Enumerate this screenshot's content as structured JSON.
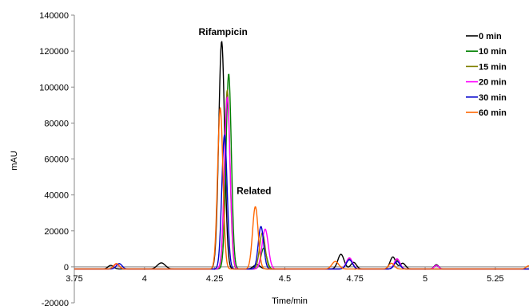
{
  "chart_data": {
    "type": "line",
    "title": "",
    "xlabel": "Time/min",
    "ylabel": "mAU",
    "xlim": [
      3.75,
      5.37
    ],
    "ylim": [
      -20000,
      140000
    ],
    "x_ticks": [
      3.75,
      4,
      4.25,
      4.5,
      4.75,
      5,
      5.25
    ],
    "x_tick_labels": [
      "3.75",
      "4",
      "4.25",
      "4.5",
      "4.75",
      "5",
      "5.25"
    ],
    "y_ticks": [
      -20000,
      0,
      20000,
      40000,
      60000,
      80000,
      100000,
      120000,
      140000
    ],
    "y_tick_labels": [
      "-20000",
      "0",
      "20000",
      "40000",
      "60000",
      "80000",
      "100000",
      "120000",
      "140000"
    ],
    "grid": false,
    "legend_position": "top-right",
    "annotations": [
      {
        "text": "Rifampicin",
        "x": 4.28,
        "y": 129000
      },
      {
        "text": "Related",
        "x": 4.39,
        "y": 40500
      }
    ],
    "series": [
      {
        "name": "0 min",
        "color": "#000000",
        "baseline": -1200,
        "peaks": [
          [
            3.88,
            800,
            0.01
          ],
          [
            4.06,
            2200,
            0.014
          ],
          [
            4.275,
            125500,
            0.0105
          ],
          [
            4.4,
            1200,
            0.012
          ],
          [
            4.7,
            7000,
            0.011
          ],
          [
            4.745,
            2500,
            0.01
          ],
          [
            4.885,
            5500,
            0.01
          ],
          [
            4.92,
            2000,
            0.01
          ],
          [
            5.04,
            1200,
            0.008
          ]
        ]
      },
      {
        "name": "10 min",
        "color": "#008000",
        "baseline": -1200,
        "peaks": [
          [
            3.9,
            1500,
            0.01
          ],
          [
            4.3,
            107500,
            0.0095
          ],
          [
            4.425,
            10500,
            0.01
          ],
          [
            4.73,
            4000,
            0.011
          ],
          [
            4.9,
            3500,
            0.01
          ],
          [
            5.04,
            800,
            0.008
          ]
        ]
      },
      {
        "name": "15 min",
        "color": "#808000",
        "baseline": -1200,
        "peaks": [
          [
            3.9,
            1500,
            0.01
          ],
          [
            4.295,
            98500,
            0.0095
          ],
          [
            4.42,
            19000,
            0.01
          ],
          [
            4.73,
            4500,
            0.011
          ],
          [
            4.9,
            4000,
            0.01
          ]
        ]
      },
      {
        "name": "20 min",
        "color": "#FF00FF",
        "baseline": -1200,
        "peaks": [
          [
            3.9,
            1500,
            0.01
          ],
          [
            4.295,
            94500,
            0.01
          ],
          [
            4.43,
            21000,
            0.011
          ],
          [
            4.73,
            5000,
            0.011
          ],
          [
            4.9,
            4500,
            0.01
          ],
          [
            5.04,
            800,
            0.008
          ]
        ]
      },
      {
        "name": "30 min",
        "color": "#0000CC",
        "baseline": -1200,
        "peaks": [
          [
            3.91,
            1800,
            0.01
          ],
          [
            4.285,
            73500,
            0.0095
          ],
          [
            4.415,
            22500,
            0.0095
          ],
          [
            4.73,
            4000,
            0.011
          ],
          [
            4.9,
            3000,
            0.01
          ]
        ]
      },
      {
        "name": "60 min",
        "color": "#FF6600",
        "baseline": -1200,
        "peaks": [
          [
            3.9,
            1800,
            0.01
          ],
          [
            4.27,
            88500,
            0.0095
          ],
          [
            4.395,
            33500,
            0.01
          ],
          [
            4.68,
            3000,
            0.012
          ],
          [
            4.88,
            2000,
            0.01
          ],
          [
            5.37,
            600,
            0.01
          ]
        ]
      }
    ]
  }
}
